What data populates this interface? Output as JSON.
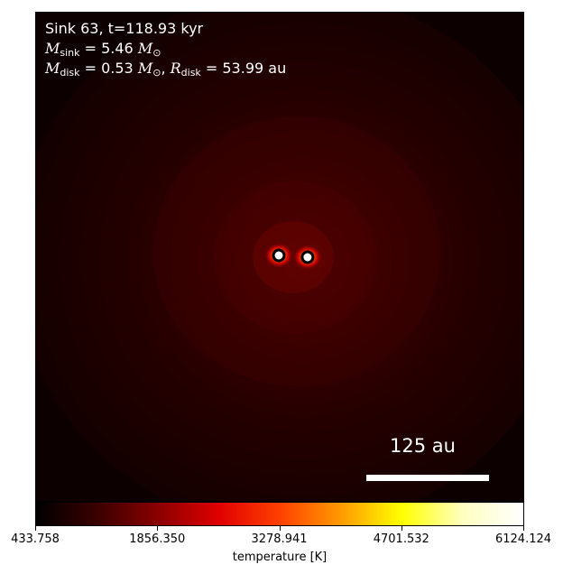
{
  "annotations": {
    "sink_line": "Sink 63, t=118.93 kyr",
    "msink_symbol": "M",
    "msink_sub": "sink",
    "msink_value": " = 5.46 ",
    "msun_symbol": "M",
    "msun_sub": "⊙",
    "mdisk_symbol": "M",
    "mdisk_sub": "disk",
    "mdisk_value": " = 0.53 ",
    "msun2_symbol": "M",
    "msun2_sub": "⊙",
    "rdisk_symbol": "R",
    "rdisk_sub": "disk",
    "rdisk_value": " = 53.99 au"
  },
  "scale_bar": {
    "label": "125 au"
  },
  "colorbar": {
    "label": "temperature [K]",
    "ticks": [
      "433.758",
      "1856.350",
      "3278.941",
      "4701.532",
      "6124.124"
    ],
    "colormap": [
      "#000000",
      "#3a0000",
      "#8a0000",
      "#e00000",
      "#ff4000",
      "#ff9a00",
      "#ffff00",
      "#ffffc0",
      "#ffffff"
    ]
  },
  "sinks": [
    {
      "name": "sink-left"
    },
    {
      "name": "sink-right"
    }
  ]
}
